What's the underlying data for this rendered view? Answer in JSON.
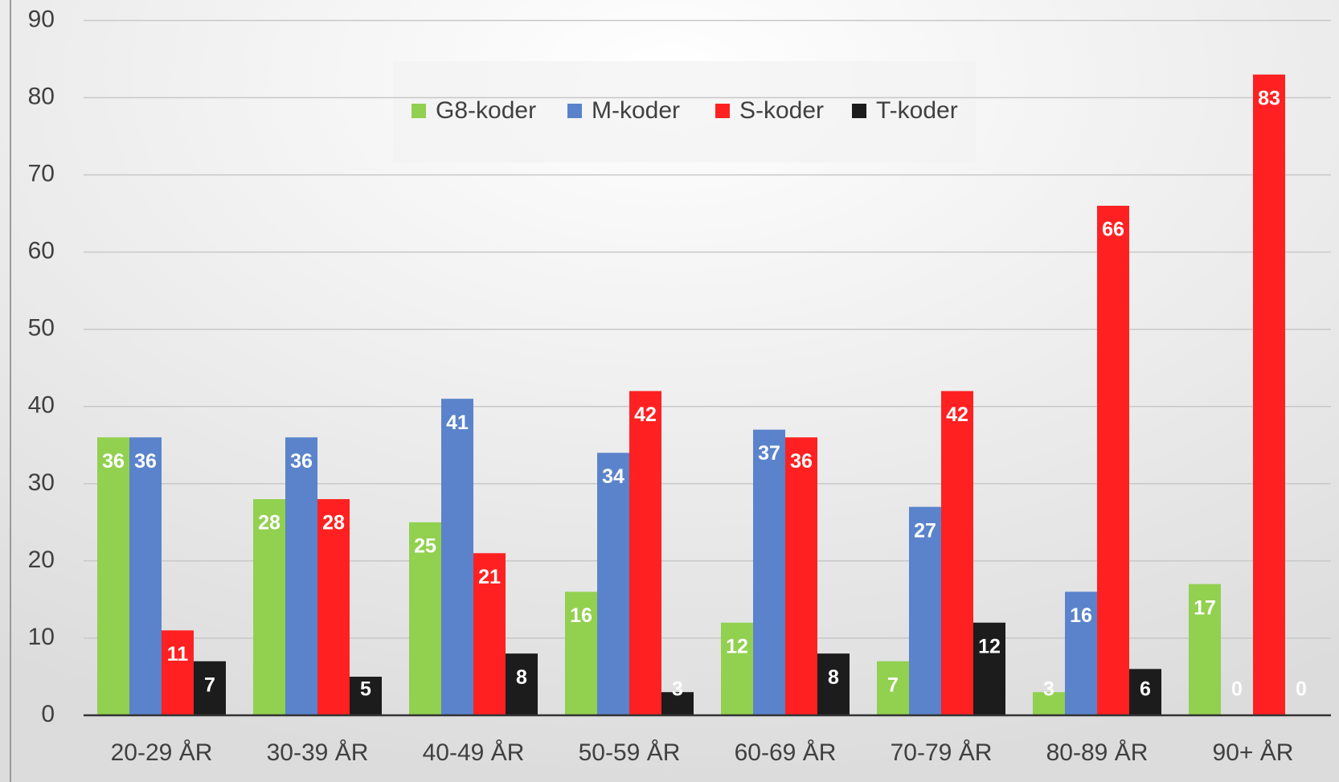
{
  "chart_data": {
    "type": "bar",
    "categories": [
      "20-29 ÅR",
      "30-39 ÅR",
      "40-49 ÅR",
      "50-59 ÅR",
      "60-69 ÅR",
      "70-79 ÅR",
      "80-89 ÅR",
      "90+ ÅR"
    ],
    "series": [
      {
        "name": "G8-koder",
        "color": "#92d050",
        "values": [
          36,
          28,
          25,
          16,
          12,
          7,
          3,
          17
        ]
      },
      {
        "name": "M-koder",
        "color": "#5a83cb",
        "values": [
          36,
          36,
          41,
          34,
          37,
          27,
          16,
          0
        ]
      },
      {
        "name": "S-koder",
        "color": "#ff2121",
        "values": [
          11,
          28,
          21,
          42,
          36,
          42,
          66,
          83
        ]
      },
      {
        "name": "T-koder",
        "color": "#1c1c1c",
        "values": [
          7,
          5,
          8,
          3,
          8,
          12,
          6,
          0
        ]
      }
    ],
    "ylim": [
      0,
      90
    ],
    "yticks": [
      0,
      10,
      20,
      30,
      40,
      50,
      60,
      70,
      80,
      90
    ],
    "grid": true,
    "legend": "top"
  }
}
